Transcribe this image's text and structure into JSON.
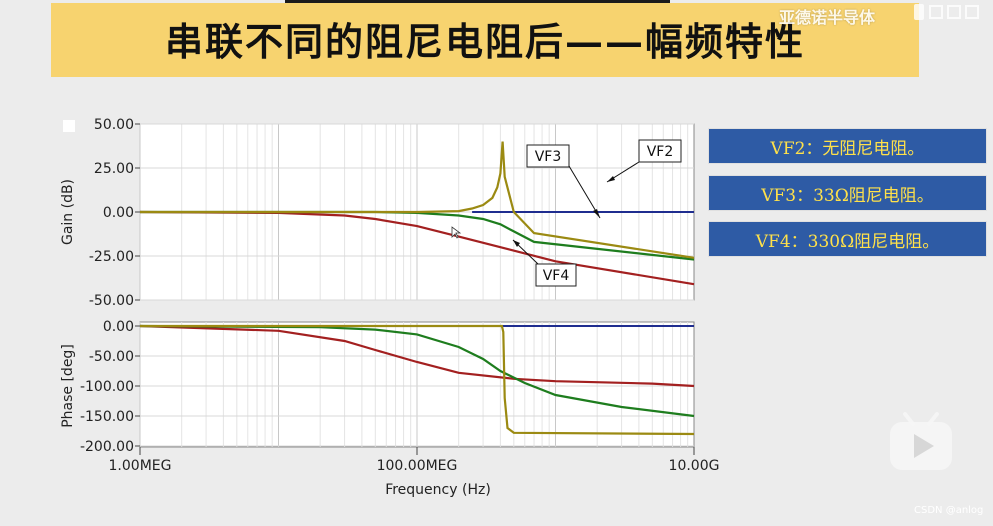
{
  "slide": {
    "title": "串联不同的阻尼电阻后——幅频特性",
    "watermark": "亚德诺半导体",
    "credit": "CSDN @anlog"
  },
  "legend": [
    {
      "label": "VF2：无阻尼电阻。"
    },
    {
      "label": "VF3：33Ω阻尼电阻。"
    },
    {
      "label": "VF4：330Ω阻尼电阻。"
    }
  ],
  "colors": {
    "banner": "#f7d36f",
    "legend_bg": "#2e5ba5",
    "legend_text": "#ffe14a",
    "VF2": "#9b8a12",
    "VF3": "#1e7d1e",
    "VF4": "#a32020",
    "baseline": "#1f2d8f"
  },
  "chart_data": [
    {
      "type": "line",
      "ylabel": "Gain (dB)",
      "x_scale": "log",
      "xlim": [
        1000000,
        10000000000
      ],
      "ylim": [
        -50,
        50
      ],
      "yticks": [
        "50.00",
        "25.00",
        "0.00",
        "-25.00",
        "-50.00"
      ],
      "series": [
        {
          "name": "VF2",
          "x": [
            1000000.0,
            100000000.0,
            200000000.0,
            250000000.0,
            300000000.0,
            350000000.0,
            380000000.0,
            400000000.0,
            415000000.0,
            430000000.0,
            500000000.0,
            700000000.0,
            10000000000.0
          ],
          "y": [
            0,
            0,
            0.5,
            2,
            4,
            8,
            14,
            22,
            40,
            20,
            0,
            -12,
            -26
          ]
        },
        {
          "name": "VF3",
          "x": [
            1000000.0,
            50000000.0,
            100000000.0,
            200000000.0,
            300000000.0,
            400000000.0,
            500000000.0,
            700000000.0,
            10000000000.0
          ],
          "y": [
            0,
            0,
            -0.5,
            -2,
            -4,
            -7,
            -11,
            -17,
            -27
          ]
        },
        {
          "name": "VF4",
          "x": [
            1000000.0,
            10000000.0,
            30000000.0,
            50000000.0,
            100000000.0,
            200000000.0,
            400000000.0,
            1000000000.0,
            10000000000.0
          ],
          "y": [
            0,
            -0.5,
            -2,
            -4,
            -8,
            -14,
            -20,
            -28,
            -41
          ]
        },
        {
          "x": [
            1000000.0,
            10000000000.0
          ],
          "y": [
            0,
            0
          ]
        }
      ],
      "annotations": [
        "VF3",
        "VF2",
        "VF4"
      ]
    },
    {
      "type": "line",
      "ylabel": "Phase [deg]",
      "xlabel": "Frequency (Hz)",
      "x_scale": "log",
      "xlim": [
        1000000,
        10000000000
      ],
      "ylim": [
        -200,
        0
      ],
      "yticks": [
        "0.00",
        "-50.00",
        "-100.00",
        "-150.00",
        "-200.00"
      ],
      "xticks": [
        "1.00MEG",
        "100.00MEG",
        "10.00G"
      ],
      "series": [
        {
          "name": "VF2",
          "x": [
            1000000.0,
            410000000.0,
            420000000.0,
            430000000.0,
            450000000.0,
            500000000.0,
            10000000000.0
          ],
          "y": [
            0,
            0,
            -10,
            -120,
            -170,
            -178,
            -180
          ]
        },
        {
          "name": "VF3",
          "x": [
            1000000.0,
            20000000.0,
            50000000.0,
            100000000.0,
            200000000.0,
            300000000.0,
            400000000.0,
            600000000.0,
            1000000000.0,
            3000000000.0,
            10000000000.0
          ],
          "y": [
            0,
            -2,
            -6,
            -14,
            -35,
            -55,
            -75,
            -95,
            -115,
            -135,
            -150
          ]
        },
        {
          "name": "VF4",
          "x": [
            1000000.0,
            10000000.0,
            30000000.0,
            50000000.0,
            100000000.0,
            200000000.0,
            500000000.0,
            1000000000.0,
            5000000000.0,
            10000000000.0
          ],
          "y": [
            0,
            -8,
            -25,
            -40,
            -60,
            -78,
            -88,
            -92,
            -96,
            -100
          ]
        },
        {
          "x": [
            1000000.0,
            10000000000.0
          ],
          "y": [
            0,
            0
          ]
        }
      ]
    }
  ]
}
